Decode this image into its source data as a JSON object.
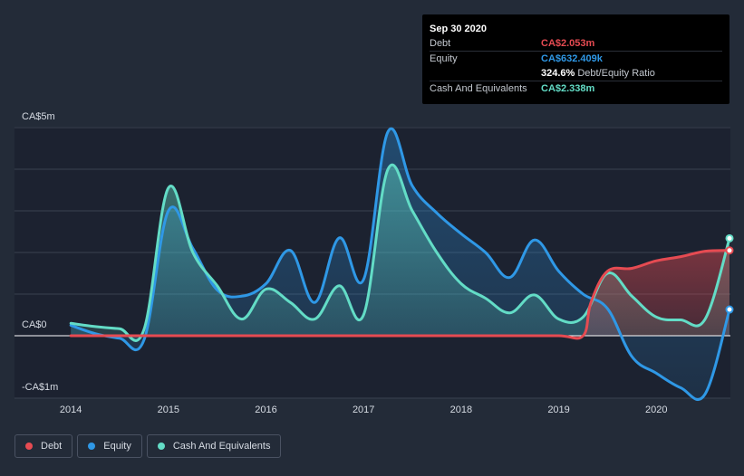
{
  "colors": {
    "debt": "#e64b52",
    "equity": "#2f98e6",
    "cash": "#63dcc6",
    "background": "#232b38",
    "grid": "#3a4250"
  },
  "tooltip": {
    "date": "Sep 30 2020",
    "debt_label": "Debt",
    "debt_value": "CA$2.053m",
    "equity_label": "Equity",
    "equity_value": "CA$632.409k",
    "ratio_value": "324.6%",
    "ratio_label": "Debt/Equity Ratio",
    "cash_label": "Cash And Equivalents",
    "cash_value": "CA$2.338m"
  },
  "legend": [
    {
      "label": "Debt",
      "color": "#e64b52"
    },
    {
      "label": "Equity",
      "color": "#2f98e6"
    },
    {
      "label": "Cash And Equivalents",
      "color": "#63dcc6"
    }
  ],
  "chart_data": {
    "type": "area",
    "ytick_labels": [
      "CA$5m",
      "CA$0",
      "-CA$1m"
    ],
    "xtick_labels": [
      "2014",
      "2015",
      "2016",
      "2017",
      "2018",
      "2019",
      "2020"
    ],
    "xtick_values": [
      2014,
      2015,
      2016,
      2017,
      2018,
      2019,
      2020
    ],
    "ylim": [
      -1.5,
      5
    ],
    "xlim": [
      2013.72,
      2020.75
    ],
    "grid_y": [
      -1.5,
      0,
      1,
      2,
      3,
      4,
      5
    ],
    "series": [
      {
        "name": "Debt",
        "points": [
          [
            2014.0,
            0
          ],
          [
            2014.5,
            0
          ],
          [
            2015.0,
            0
          ],
          [
            2015.5,
            0
          ],
          [
            2016.0,
            0
          ],
          [
            2016.5,
            0
          ],
          [
            2017.0,
            0
          ],
          [
            2017.5,
            0
          ],
          [
            2018.0,
            0
          ],
          [
            2018.5,
            0
          ],
          [
            2019.0,
            0
          ],
          [
            2019.25,
            0
          ],
          [
            2019.33,
            0.8
          ],
          [
            2019.5,
            1.55
          ],
          [
            2019.75,
            1.62
          ],
          [
            2020.0,
            1.8
          ],
          [
            2020.25,
            1.9
          ],
          [
            2020.5,
            2.03
          ],
          [
            2020.75,
            2.05
          ]
        ]
      },
      {
        "name": "Equity",
        "points": [
          [
            2014.0,
            0.25
          ],
          [
            2014.25,
            0.05
          ],
          [
            2014.5,
            -0.06
          ],
          [
            2014.75,
            -0.1
          ],
          [
            2015.0,
            3.0
          ],
          [
            2015.25,
            2.1
          ],
          [
            2015.5,
            1.1
          ],
          [
            2015.75,
            0.95
          ],
          [
            2016.0,
            1.25
          ],
          [
            2016.25,
            2.05
          ],
          [
            2016.5,
            0.8
          ],
          [
            2016.75,
            2.35
          ],
          [
            2017.0,
            1.35
          ],
          [
            2017.25,
            4.9
          ],
          [
            2017.5,
            3.6
          ],
          [
            2017.75,
            2.95
          ],
          [
            2018.0,
            2.45
          ],
          [
            2018.25,
            2.0
          ],
          [
            2018.5,
            1.4
          ],
          [
            2018.75,
            2.3
          ],
          [
            2019.0,
            1.55
          ],
          [
            2019.25,
            1.0
          ],
          [
            2019.5,
            0.65
          ],
          [
            2019.75,
            -0.5
          ],
          [
            2020.0,
            -0.9
          ],
          [
            2020.25,
            -1.25
          ],
          [
            2020.5,
            -1.4
          ],
          [
            2020.75,
            0.63
          ]
        ]
      },
      {
        "name": "Cash And Equivalents",
        "points": [
          [
            2014.0,
            0.3
          ],
          [
            2014.25,
            0.22
          ],
          [
            2014.5,
            0.17
          ],
          [
            2014.75,
            0.15
          ],
          [
            2015.0,
            3.55
          ],
          [
            2015.25,
            2.0
          ],
          [
            2015.5,
            1.2
          ],
          [
            2015.75,
            0.4
          ],
          [
            2016.0,
            1.12
          ],
          [
            2016.25,
            0.8
          ],
          [
            2016.5,
            0.4
          ],
          [
            2016.75,
            1.2
          ],
          [
            2017.0,
            0.5
          ],
          [
            2017.25,
            4.0
          ],
          [
            2017.5,
            3.0
          ],
          [
            2017.75,
            2.0
          ],
          [
            2018.0,
            1.25
          ],
          [
            2018.25,
            0.9
          ],
          [
            2018.5,
            0.55
          ],
          [
            2018.75,
            0.98
          ],
          [
            2019.0,
            0.4
          ],
          [
            2019.25,
            0.45
          ],
          [
            2019.5,
            1.5
          ],
          [
            2019.75,
            0.95
          ],
          [
            2020.0,
            0.45
          ],
          [
            2020.25,
            0.38
          ],
          [
            2020.5,
            0.4
          ],
          [
            2020.75,
            2.34
          ]
        ]
      }
    ]
  }
}
